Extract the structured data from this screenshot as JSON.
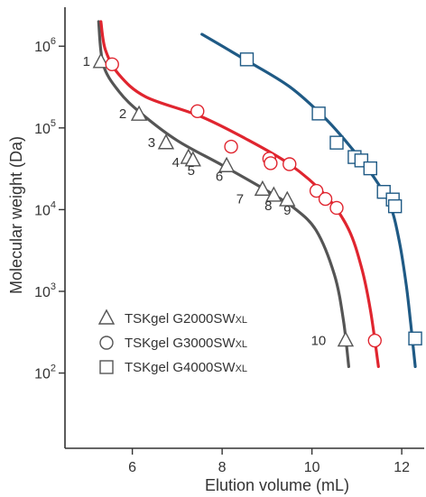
{
  "chart_data": {
    "type": "scatter",
    "title": "",
    "xlabel": "Elution volume (mL)",
    "ylabel": "Molecular weight (Da)",
    "x_ticks": [
      "6",
      "8",
      "10",
      "12"
    ],
    "x_tick_values": [
      6,
      8,
      10,
      12
    ],
    "xlim": [
      4.5,
      12.5
    ],
    "y_scale": "log",
    "y_ticks": [
      {
        "base": "10",
        "exp": "2",
        "value": 100
      },
      {
        "base": "10",
        "exp": "3",
        "value": 1000
      },
      {
        "base": "10",
        "exp": "4",
        "value": 10000
      },
      {
        "base": "10",
        "exp": "5",
        "value": 100000
      },
      {
        "base": "10",
        "exp": "6",
        "value": 1000000
      }
    ],
    "ylim": [
      12,
      3000000
    ],
    "grid": false,
    "legend_position": "bottom-left",
    "series": [
      {
        "name": "TSKgel G2000SW",
        "name_suffix": "XL",
        "marker": "triangle",
        "marker_color": "#555555",
        "curve_color": "#555555",
        "points": [
          {
            "x": 5.3,
            "y": 640000,
            "label": "1"
          },
          {
            "x": 6.15,
            "y": 145000,
            "label": "2"
          },
          {
            "x": 6.75,
            "y": 65000,
            "label": "3"
          },
          {
            "x": 7.25,
            "y": 43000,
            "label": "4"
          },
          {
            "x": 7.35,
            "y": 40000,
            "label": "5"
          },
          {
            "x": 8.1,
            "y": 34000,
            "label": "6"
          },
          {
            "x": 8.9,
            "y": 17500,
            "label": "7"
          },
          {
            "x": 9.15,
            "y": 14800,
            "label": "8"
          },
          {
            "x": 9.45,
            "y": 13000,
            "label": "9"
          },
          {
            "x": 10.75,
            "y": 250,
            "label": "10"
          }
        ],
        "curve": [
          [
            5.25,
            2000000
          ],
          [
            5.35,
            600000
          ],
          [
            5.7,
            280000
          ],
          [
            6.2,
            150000
          ],
          [
            7.0,
            70000
          ],
          [
            8.0,
            35000
          ],
          [
            9.0,
            17000
          ],
          [
            9.6,
            10500
          ],
          [
            10.1,
            5500
          ],
          [
            10.5,
            1600
          ],
          [
            10.7,
            450
          ],
          [
            10.82,
            120
          ]
        ]
      },
      {
        "name": "TSKgel G3000SW",
        "name_suffix": "XL",
        "marker": "circle",
        "marker_color": "#e0252f",
        "curve_color": "#e0252f",
        "points": [
          {
            "x": 5.55,
            "y": 600000
          },
          {
            "x": 7.45,
            "y": 160000
          },
          {
            "x": 8.2,
            "y": 59000
          },
          {
            "x": 9.05,
            "y": 42000
          },
          {
            "x": 9.08,
            "y": 37000
          },
          {
            "x": 9.5,
            "y": 36000
          },
          {
            "x": 10.1,
            "y": 17000
          },
          {
            "x": 10.3,
            "y": 13500
          },
          {
            "x": 10.55,
            "y": 10500
          },
          {
            "x": 11.4,
            "y": 250
          }
        ],
        "curve": [
          [
            5.3,
            2000000
          ],
          [
            5.4,
            900000
          ],
          [
            5.7,
            450000
          ],
          [
            6.3,
            240000
          ],
          [
            7.5,
            140000
          ],
          [
            8.5,
            75000
          ],
          [
            9.5,
            36000
          ],
          [
            10.3,
            15000
          ],
          [
            10.8,
            6000
          ],
          [
            11.1,
            2000
          ],
          [
            11.3,
            600
          ],
          [
            11.48,
            120
          ]
        ]
      },
      {
        "name": "TSKgel G4000SW",
        "name_suffix": "XL",
        "marker": "square",
        "marker_color": "#1f5a85",
        "curve_color": "#1f5a85",
        "points": [
          {
            "x": 8.55,
            "y": 690000
          },
          {
            "x": 10.15,
            "y": 150000
          },
          {
            "x": 10.55,
            "y": 66000
          },
          {
            "x": 10.95,
            "y": 44000
          },
          {
            "x": 11.1,
            "y": 40000
          },
          {
            "x": 11.3,
            "y": 32000
          },
          {
            "x": 11.6,
            "y": 16500
          },
          {
            "x": 11.8,
            "y": 13300
          },
          {
            "x": 11.85,
            "y": 11000
          },
          {
            "x": 12.3,
            "y": 265
          }
        ],
        "curve": [
          [
            7.55,
            1400000
          ],
          [
            8.5,
            690000
          ],
          [
            9.5,
            320000
          ],
          [
            10.3,
            130000
          ],
          [
            10.9,
            55000
          ],
          [
            11.4,
            24000
          ],
          [
            11.75,
            11000
          ],
          [
            11.95,
            4000
          ],
          [
            12.1,
            1200
          ],
          [
            12.2,
            400
          ],
          [
            12.3,
            120
          ]
        ]
      }
    ]
  }
}
